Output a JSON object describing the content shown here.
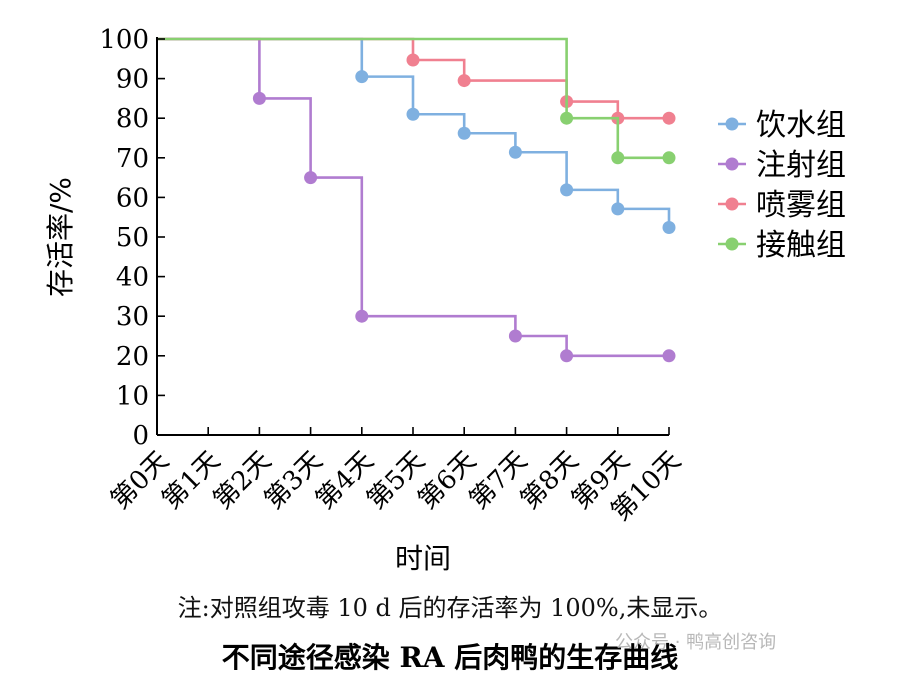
{
  "chart_data": {
    "type": "line",
    "step": true,
    "categories": [
      "第0天",
      "第1天",
      "第2天",
      "第3天",
      "第4天",
      "第5天",
      "第6天",
      "第7天",
      "第8天",
      "第9天",
      "第10天"
    ],
    "x": [
      0,
      1,
      2,
      3,
      4,
      5,
      6,
      7,
      8,
      9,
      10
    ],
    "ylabel": "存活率/%",
    "xlabel": "时间",
    "ylim": [
      0,
      100
    ],
    "yticks": [
      0,
      10,
      20,
      30,
      40,
      50,
      60,
      70,
      80,
      90,
      100
    ],
    "legend_position": "right",
    "series": [
      {
        "name": "饮水组",
        "color": "#7fb0e0",
        "values": [
          100,
          100,
          100,
          100,
          90.5,
          81,
          76.2,
          71.4,
          61.9,
          57.1,
          52.4
        ],
        "markers": [
          4,
          5,
          6,
          7,
          8,
          9,
          10
        ]
      },
      {
        "name": "注射组",
        "color": "#b07cd0",
        "values": [
          100,
          100,
          85,
          65,
          30,
          30,
          30,
          25,
          20,
          20,
          20
        ],
        "markers": [
          2,
          3,
          4,
          7,
          8,
          10
        ]
      },
      {
        "name": "喷雾组",
        "color": "#f08090",
        "values": [
          100,
          100,
          100,
          100,
          100,
          94.7,
          89.5,
          89.5,
          84.2,
          80,
          80
        ],
        "markers": [
          5,
          6,
          8,
          9,
          10
        ]
      },
      {
        "name": "接触组",
        "color": "#88d070",
        "values": [
          100,
          100,
          100,
          100,
          100,
          100,
          100,
          100,
          80,
          70,
          70
        ],
        "markers": [
          8,
          9,
          10
        ]
      }
    ]
  },
  "note": "注:对照组攻毒 10 d 后的存活率为 100%,未显示。",
  "caption": "不同途径感染 RA 后肉鸭的生存曲线",
  "watermark": "公众号 · 鸭高创咨询"
}
